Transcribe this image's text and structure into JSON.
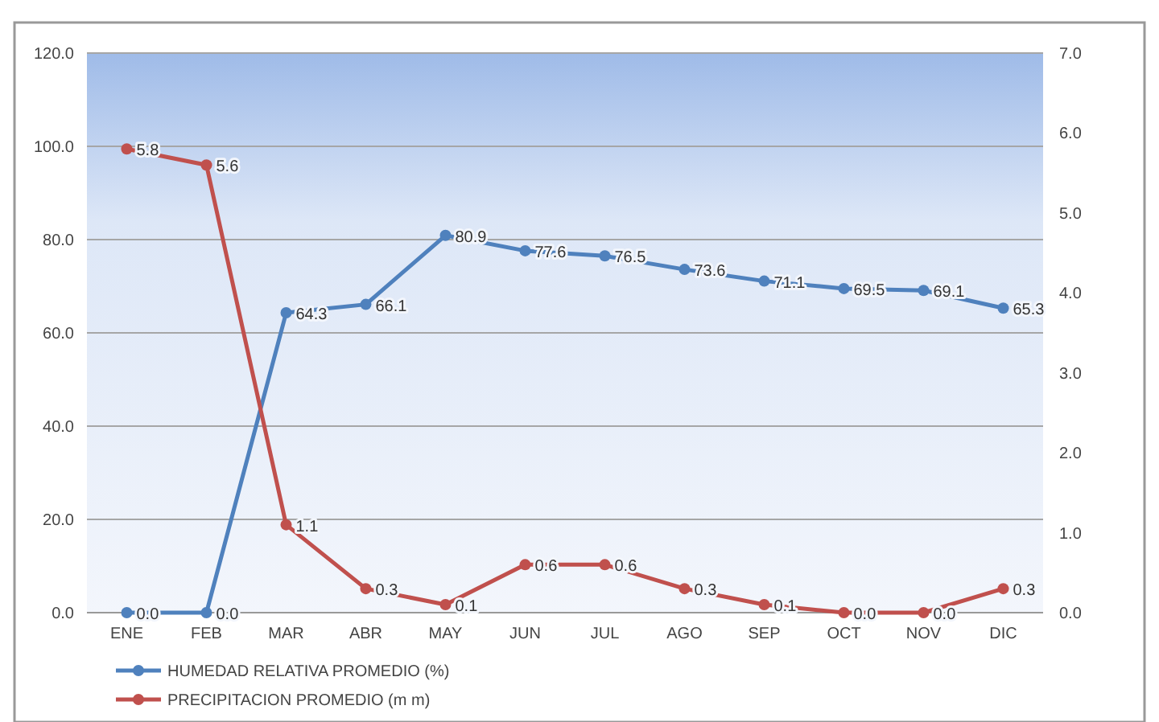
{
  "chart_data": {
    "type": "line",
    "categories": [
      "ENE",
      "FEB",
      "MAR",
      "ABR",
      "MAY",
      "JUN",
      "JUL",
      "AGO",
      "SEP",
      "OCT",
      "NOV",
      "DIC"
    ],
    "series": [
      {
        "name": "HUMEDAD RELATIVA PROMEDIO (%)",
        "color": "#4f81bd",
        "values": [
          0,
          0,
          64.3,
          66.1,
          80.9,
          77.6,
          76.5,
          73.6,
          71.1,
          69.5,
          69.1,
          65.3
        ],
        "value_labels": [
          "0.0",
          "0.0",
          "64.3",
          "66.1",
          "80.9",
          "77.6",
          "76.5",
          "73.6",
          "71.1",
          "69.5",
          "69.1",
          "65.3"
        ]
      },
      {
        "name": "PRECIPITACION PROMEDIO (m m)",
        "color": "#c0504d",
        "axis": "y2",
        "values": [
          5.8,
          5.6,
          1.1,
          0.3,
          0.1,
          0.6,
          0.6,
          0.3,
          0.1,
          0.0,
          0.0,
          0.3
        ],
        "value_labels": [
          "5.8",
          "5.6",
          "1.1",
          "0.3",
          "0.1",
          "0.6",
          "0.6",
          "0.3",
          "0.1",
          "0.0",
          "0.0",
          "0.3"
        ]
      }
    ],
    "ylim": [
      0,
      120
    ],
    "yticks": [
      {
        "value": 0,
        "label": "0.0"
      },
      {
        "value": 20,
        "label": "20.0"
      },
      {
        "value": 40,
        "label": "40.0"
      },
      {
        "value": 60,
        "label": "60.0"
      },
      {
        "value": 80,
        "label": "80.0"
      },
      {
        "value": 100,
        "label": "100.0"
      },
      {
        "value": 120,
        "label": "120.0"
      }
    ],
    "y2lim": [
      0,
      7
    ],
    "y2ticks": [
      {
        "value": 0,
        "label": "0.0"
      },
      {
        "value": 1,
        "label": "1.0"
      },
      {
        "value": 2,
        "label": "2.0"
      },
      {
        "value": 3,
        "label": "3.0"
      },
      {
        "value": 4,
        "label": "4.0"
      },
      {
        "value": 5,
        "label": "5.0"
      },
      {
        "value": 6,
        "label": "6.0"
      },
      {
        "value": 7,
        "label": "7.0"
      }
    ],
    "grid": "y",
    "legend": "bottom left",
    "marker": "circle",
    "line_style": "solid"
  }
}
